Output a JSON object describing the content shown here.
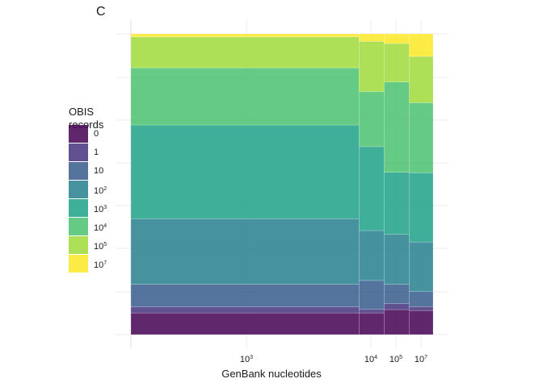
{
  "panel_tag": "C",
  "chart_data": {
    "type": "mosaic",
    "title": "",
    "xlabel": "GenBank nucleotides",
    "ylabel": "",
    "legend": {
      "title": "OBIS records",
      "position": "left",
      "entries": [
        {
          "label": "0",
          "sup": "",
          "color": "#440154"
        },
        {
          "label": "1",
          "sup": "",
          "color": "#46337E"
        },
        {
          "label": "10",
          "sup": "",
          "color": "#365C8D"
        },
        {
          "label": "10",
          "sup": "2",
          "color": "#277F8E"
        },
        {
          "label": "10",
          "sup": "3",
          "color": "#1FA187"
        },
        {
          "label": "10",
          "sup": "4",
          "color": "#4AC16D"
        },
        {
          "label": "10",
          "sup": "5",
          "color": "#9FDA3A"
        },
        {
          "label": "10",
          "sup": "7",
          "color": "#FDE725"
        }
      ]
    },
    "x_ticks": [
      {
        "base": "10",
        "sup": "3"
      },
      {
        "base": "10",
        "sup": "4"
      },
      {
        "base": "10",
        "sup": "5"
      },
      {
        "base": "10",
        "sup": "7"
      }
    ],
    "grid": true,
    "columns": [
      {
        "width": 0.755,
        "fractions": [
          0.072,
          0.02,
          0.075,
          0.218,
          0.312,
          0.19,
          0.103,
          0.01
        ]
      },
      {
        "width": 0.083,
        "fractions": [
          0.072,
          0.013,
          0.095,
          0.166,
          0.279,
          0.183,
          0.167,
          0.025
        ]
      },
      {
        "width": 0.083,
        "fractions": [
          0.083,
          0.02,
          0.064,
          0.166,
          0.207,
          0.3,
          0.128,
          0.032
        ]
      },
      {
        "width": 0.079,
        "fractions": [
          0.08,
          0.013,
          0.05,
          0.165,
          0.23,
          0.233,
          0.154,
          0.075
        ]
      }
    ]
  }
}
